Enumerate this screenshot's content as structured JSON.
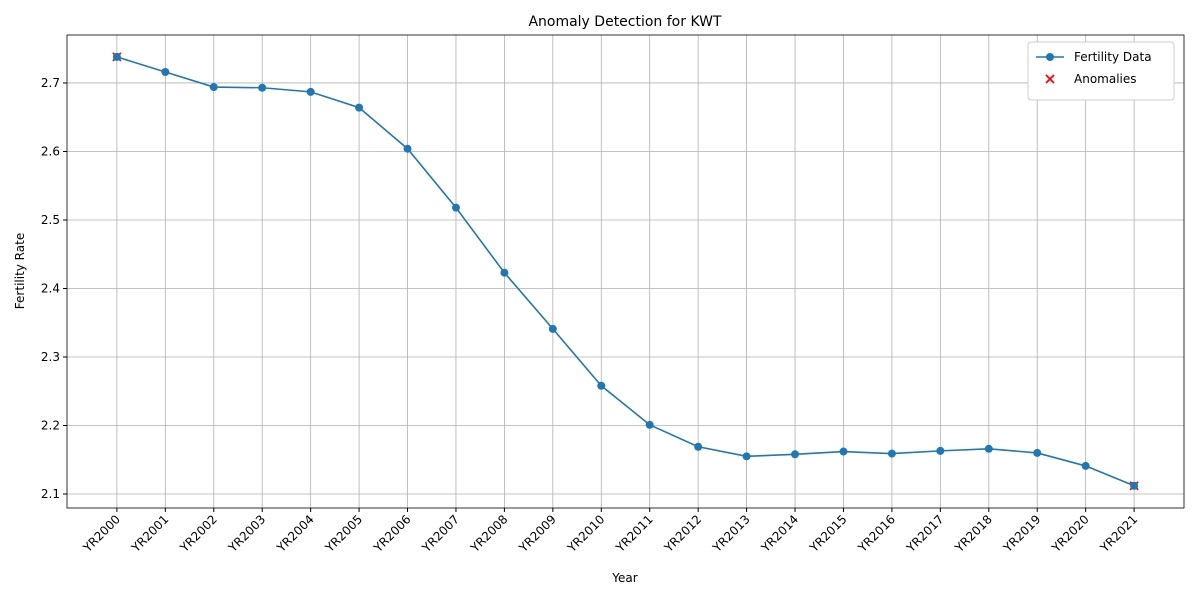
{
  "chart_data": {
    "type": "line",
    "title": "Anomaly Detection for KWT",
    "xlabel": "Year",
    "ylabel": "Fertility Rate",
    "categories": [
      "YR2000",
      "YR2001",
      "YR2002",
      "YR2003",
      "YR2004",
      "YR2005",
      "YR2006",
      "YR2007",
      "YR2008",
      "YR2009",
      "YR2010",
      "YR2011",
      "YR2012",
      "YR2013",
      "YR2014",
      "YR2015",
      "YR2016",
      "YR2017",
      "YR2018",
      "YR2019",
      "YR2020",
      "YR2021"
    ],
    "series": [
      {
        "name": "Fertility Data",
        "color": "#1f77b4",
        "marker": "o",
        "values": [
          2.738,
          2.716,
          2.694,
          2.693,
          2.687,
          2.664,
          2.604,
          2.518,
          2.423,
          2.341,
          2.258,
          2.201,
          2.169,
          2.155,
          2.158,
          2.162,
          2.159,
          2.163,
          2.166,
          2.16,
          2.141,
          2.112
        ]
      },
      {
        "name": "Anomalies",
        "color": "#ff0000",
        "marker": "x",
        "values": [
          2.738,
          null,
          null,
          null,
          null,
          null,
          null,
          null,
          null,
          null,
          null,
          null,
          null,
          null,
          null,
          null,
          null,
          null,
          null,
          null,
          null,
          2.112
        ]
      }
    ],
    "ylim": [
      2.0796,
      2.77
    ],
    "yticks": [
      2.1,
      2.2,
      2.3,
      2.4,
      2.5,
      2.6,
      2.7
    ],
    "grid": true,
    "legend": "upper right"
  }
}
